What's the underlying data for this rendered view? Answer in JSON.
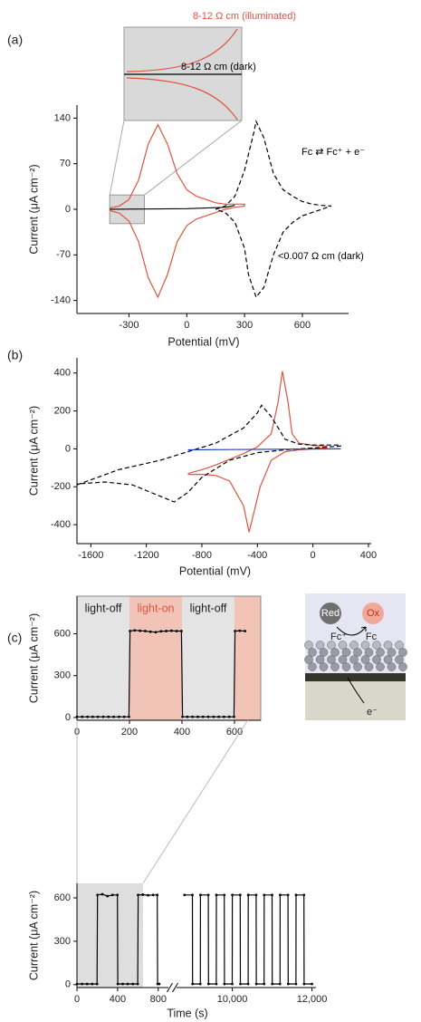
{
  "chart_data": [
    {
      "type": "line",
      "label": "(a)",
      "xlabel": "Potential (mV)",
      "ylabel": "Current (μA cm⁻²)",
      "xlim": [
        -570,
        840
      ],
      "ylim": [
        -160,
        160
      ],
      "xticks": [
        -300,
        0,
        300,
        600
      ],
      "yticks": [
        140,
        70,
        0,
        -70,
        -140
      ],
      "zoom_box": {
        "x": [
          -400,
          -220
        ],
        "y": [
          -22,
          22
        ]
      },
      "annotations": [
        {
          "text": "8-12  Ω cm (illuminated)",
          "color": "#e0533f"
        },
        {
          "text": "8-12  Ω cm (dark)",
          "color": "#000000"
        },
        {
          "text": "Fc ⇄ Fc⁺ + e⁻",
          "color": "#000000"
        },
        {
          "text": "<0.007 Ω cm (dark)",
          "color": "#000000"
        }
      ],
      "series": [
        {
          "color": "#e0533f",
          "dash": false,
          "x": [
            -400,
            -350,
            -300,
            -250,
            -200,
            -150,
            -100,
            -50,
            0,
            50,
            100,
            150,
            200,
            250,
            300,
            300,
            250,
            200,
            150,
            100,
            50,
            0,
            -50,
            -100,
            -150,
            -200,
            -250,
            -300,
            -350,
            -400
          ],
          "values": [
            2,
            5,
            15,
            45,
            100,
            130,
            100,
            55,
            30,
            20,
            15,
            10,
            8,
            8,
            8,
            5,
            3,
            0,
            -5,
            -10,
            -15,
            -25,
            -50,
            -100,
            -135,
            -105,
            -50,
            -18,
            -6,
            -2
          ]
        },
        {
          "color": "#000000",
          "dash": true,
          "x": [
            150,
            200,
            250,
            300,
            350,
            360,
            400,
            450,
            500,
            550,
            600,
            650,
            700,
            750,
            750,
            700,
            650,
            600,
            550,
            500,
            450,
            400,
            360,
            320,
            300,
            250,
            200,
            150
          ],
          "values": [
            0,
            5,
            20,
            60,
            120,
            135,
            110,
            55,
            30,
            20,
            12,
            8,
            6,
            5,
            5,
            0,
            -5,
            -10,
            -20,
            -35,
            -70,
            -120,
            -135,
            -100,
            -60,
            -20,
            -5,
            0
          ]
        },
        {
          "color": "#000000",
          "dash": false,
          "x": [
            -400,
            0,
            200,
            250
          ],
          "values": [
            0,
            1,
            3,
            6
          ]
        }
      ]
    },
    {
      "type": "line",
      "label": "(b)",
      "xlabel": "Potential (mV)",
      "ylabel": "Current (μA cm⁻²)",
      "xlim": [
        -1700,
        420
      ],
      "ylim": [
        -500,
        480
      ],
      "xticks": [
        -1600,
        -1200,
        -800,
        -400,
        0,
        400
      ],
      "yticks": [
        400,
        200,
        0,
        -200,
        -400
      ],
      "series": [
        {
          "color": "#e0533f",
          "dash": false,
          "x": [
            -900,
            -800,
            -700,
            -600,
            -500,
            -400,
            -300,
            -250,
            -220,
            -180,
            -150,
            -100,
            0,
            100,
            100,
            0,
            -100,
            -200,
            -300,
            -380,
            -440,
            -460,
            -500,
            -600,
            -700,
            -800,
            -900
          ],
          "values": [
            -130,
            -110,
            -85,
            -55,
            -25,
            10,
            80,
            250,
            410,
            250,
            80,
            30,
            18,
            15,
            5,
            0,
            -5,
            -15,
            -60,
            -200,
            -380,
            -440,
            -300,
            -170,
            -140,
            -135,
            -135
          ]
        },
        {
          "color": "#000000",
          "dash": true,
          "x": [
            -1700,
            -1400,
            -1100,
            -900,
            -700,
            -500,
            -400,
            -370,
            -300,
            -200,
            -100,
            0,
            100,
            200,
            200,
            0,
            -200,
            -400,
            -600,
            -800,
            -900,
            -1000,
            -1100,
            -1300,
            -1500,
            -1700
          ],
          "values": [
            -190,
            -110,
            -60,
            -15,
            30,
            110,
            190,
            230,
            170,
            50,
            25,
            20,
            20,
            20,
            15,
            5,
            -5,
            -20,
            -60,
            -150,
            -230,
            -280,
            -250,
            -190,
            -175,
            -185
          ]
        },
        {
          "color": "#2040c0",
          "dash": false,
          "x": [
            -900,
            200
          ],
          "values": [
            -5,
            0
          ]
        }
      ]
    },
    {
      "type": "line",
      "label": "(c)",
      "ylabel": "Current (μA cm⁻²)",
      "markers": true,
      "xlim": [
        0,
        700
      ],
      "ylim": [
        -20,
        870
      ],
      "xticks": [
        0,
        200,
        400,
        600
      ],
      "yticks": [
        0,
        300,
        600
      ],
      "regions": [
        {
          "label": "light-off",
          "from": 0,
          "to": 200,
          "color": "#e4e4e4"
        },
        {
          "label": "light-on",
          "from": 200,
          "to": 400,
          "color": "#f2c4b8",
          "text_color": "#e0533f"
        },
        {
          "label": "light-off",
          "from": 400,
          "to": 600,
          "color": "#e4e4e4"
        },
        {
          "from": 600,
          "to": 700,
          "color": "#f2c4b8"
        }
      ],
      "series": [
        {
          "color": "#000000",
          "dash": false,
          "x": [
            0,
            20,
            40,
            60,
            80,
            100,
            120,
            140,
            160,
            180,
            198,
            202,
            220,
            240,
            260,
            280,
            300,
            320,
            340,
            360,
            380,
            398,
            402,
            420,
            440,
            460,
            480,
            500,
            520,
            540,
            560,
            580,
            598,
            602,
            620,
            640
          ],
          "values": [
            5,
            5,
            5,
            5,
            5,
            5,
            5,
            5,
            5,
            5,
            5,
            620,
            625,
            622,
            620,
            615,
            612,
            618,
            620,
            622,
            620,
            620,
            5,
            5,
            5,
            5,
            5,
            5,
            5,
            5,
            5,
            5,
            5,
            620,
            622,
            620
          ]
        }
      ]
    },
    {
      "type": "line",
      "xlabel": "Time (s)",
      "ylabel": "Current (μA cm⁻²)",
      "markers": true,
      "xlim_segments": [
        [
          0,
          900
        ],
        [
          8600,
          12100
        ]
      ],
      "ylim": [
        -20,
        700
      ],
      "xticks": [
        0,
        400,
        800,
        {
          "value": 10000,
          "label": "10,000"
        },
        {
          "value": 12000,
          "label": "12,000"
        }
      ],
      "yticks": [
        0,
        300,
        600
      ],
      "shade": [
        0,
        650
      ],
      "series": [
        {
          "color": "#000000",
          "dash": false,
          "x": [
            0,
            50,
            100,
            150,
            198,
            202,
            250,
            300,
            350,
            398,
            402,
            450,
            500,
            550,
            598,
            602,
            650,
            700,
            750,
            790,
            794,
            810
          ],
          "values": [
            5,
            5,
            5,
            5,
            5,
            620,
            625,
            612,
            620,
            620,
            5,
            5,
            5,
            5,
            5,
            620,
            622,
            618,
            620,
            620,
            5,
            5
          ]
        },
        {
          "color": "#000000",
          "dash": false,
          "x": [
            8800,
            8998,
            9002,
            9198,
            9200,
            9398,
            9402,
            9598,
            9600,
            9798,
            9802,
            9998,
            10000,
            10198,
            10202,
            10398,
            10400,
            10598,
            10602,
            10798,
            10800,
            10998,
            11002,
            11198,
            11200,
            11398,
            11402,
            11598,
            11600,
            11798,
            11802,
            11998
          ],
          "values": [
            620,
            620,
            5,
            5,
            620,
            620,
            5,
            5,
            620,
            620,
            5,
            5,
            620,
            620,
            5,
            5,
            620,
            620,
            5,
            5,
            620,
            620,
            5,
            5,
            620,
            620,
            5,
            5,
            620,
            620,
            5,
            5
          ]
        }
      ]
    }
  ],
  "schematic": {
    "reactant": "Red",
    "product": "Ox",
    "fc_plus": "Fc⁺",
    "fc": "Fc",
    "electron": "e⁻"
  }
}
